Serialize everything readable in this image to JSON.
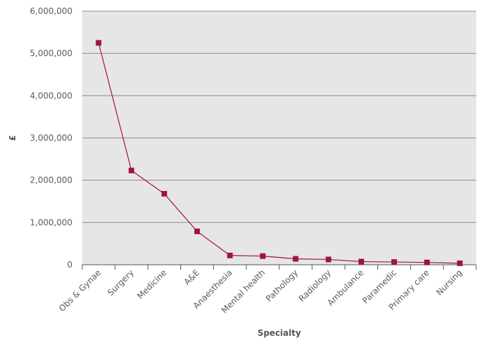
{
  "chart_data": {
    "type": "line",
    "title": "",
    "xlabel": "Specialty",
    "ylabel": "£",
    "ylim": [
      0,
      6000000
    ],
    "yticks": [
      "0",
      "1,000,000",
      "2,000,000",
      "3,000,000",
      "4,000,000",
      "5,000,000",
      "6,000,000"
    ],
    "ytick_values": [
      0,
      1000000,
      2000000,
      3000000,
      4000000,
      5000000,
      6000000
    ],
    "categories": [
      "Obs & Gynae",
      "Surgery",
      "Medicine",
      "A&E",
      "Anaesthesia",
      "Mental health",
      "Pathology",
      "Radiology",
      "Ambulance",
      "Paramedic",
      "Primary care",
      "Nursing"
    ],
    "series": [
      {
        "values": [
          5250000,
          2230000,
          1680000,
          790000,
          220000,
          205000,
          140000,
          125000,
          75000,
          65000,
          55000,
          35000
        ]
      }
    ],
    "grid": "horizontal",
    "colors": {
      "background": "#e6e6e6",
      "grid": "#8c8c8c",
      "line": "#a0143c",
      "marker": "#a0143c",
      "axis": "#555555",
      "text": "#5a5a5a"
    }
  }
}
